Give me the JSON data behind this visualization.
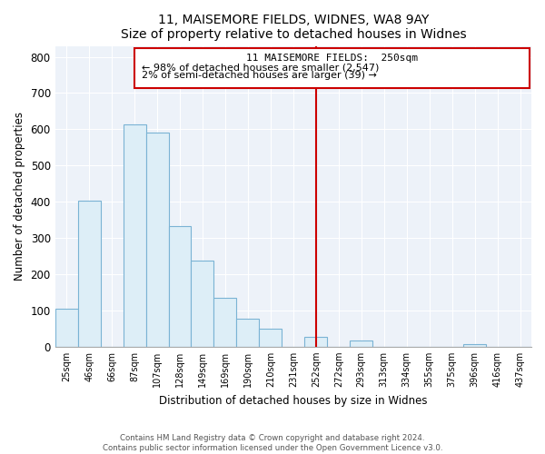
{
  "title": "11, MAISEMORE FIELDS, WIDNES, WA8 9AY",
  "subtitle": "Size of property relative to detached houses in Widnes",
  "xlabel": "Distribution of detached houses by size in Widnes",
  "ylabel": "Number of detached properties",
  "bar_fill_color": "#ddeef7",
  "bar_edge_color": "#7ab3d4",
  "background_color": "#edf2f9",
  "bin_labels": [
    "25sqm",
    "46sqm",
    "66sqm",
    "87sqm",
    "107sqm",
    "128sqm",
    "149sqm",
    "169sqm",
    "190sqm",
    "210sqm",
    "231sqm",
    "252sqm",
    "272sqm",
    "293sqm",
    "313sqm",
    "334sqm",
    "355sqm",
    "375sqm",
    "396sqm",
    "416sqm",
    "437sqm"
  ],
  "bar_values": [
    105,
    403,
    0,
    614,
    590,
    333,
    237,
    136,
    76,
    50,
    0,
    27,
    0,
    18,
    0,
    0,
    0,
    0,
    8,
    0,
    0
  ],
  "vline_index": 11,
  "vline_color": "#cc0000",
  "annotation_title": "11 MAISEMORE FIELDS:  250sqm",
  "annotation_line1": "← 98% of detached houses are smaller (2,547)",
  "annotation_line2": "2% of semi-detached houses are larger (39) →",
  "ylim": [
    0,
    830
  ],
  "yticks": [
    0,
    100,
    200,
    300,
    400,
    500,
    600,
    700,
    800
  ],
  "footer1": "Contains HM Land Registry data © Crown copyright and database right 2024.",
  "footer2": "Contains public sector information licensed under the Open Government Licence v3.0."
}
